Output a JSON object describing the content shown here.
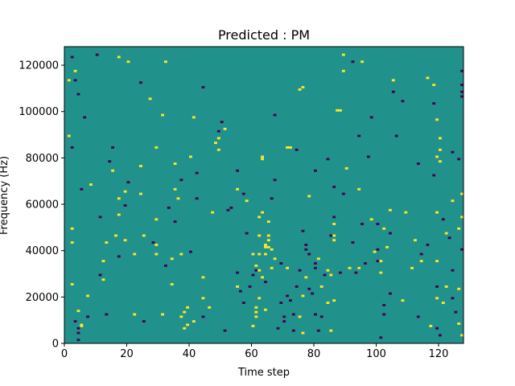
{
  "chart_data": {
    "type": "heatmap",
    "title": "Predicted : PM",
    "xlabel": "Time step",
    "ylabel": "Frequency (Hz)",
    "xlim": [
      0,
      128
    ],
    "ylim": [
      0,
      128000
    ],
    "x_ticks": [
      0,
      20,
      40,
      60,
      80,
      100,
      120
    ],
    "y_ticks": [
      0,
      20000,
      40000,
      60000,
      80000,
      100000,
      120000
    ],
    "y_tick_labels": [
      "0",
      "20000",
      "40000",
      "60000",
      "80000",
      "100000",
      "120000"
    ],
    "grid": false,
    "colormap": "viridis",
    "background_value": 0,
    "colors": {
      "low": "#440154",
      "background": "#21918c",
      "high": "#fde725"
    },
    "cells_high": [
      [
        5,
        7000
      ],
      [
        5,
        7500
      ],
      [
        4,
        13500
      ],
      [
        2,
        25000
      ],
      [
        2,
        43000
      ],
      [
        2,
        49000
      ],
      [
        1,
        89000
      ],
      [
        1,
        113000
      ],
      [
        3,
        117000
      ],
      [
        7,
        20000
      ],
      [
        8,
        68000
      ],
      [
        12,
        27000
      ],
      [
        12,
        35000
      ],
      [
        13,
        43000
      ],
      [
        16,
        46000
      ],
      [
        15,
        74000
      ],
      [
        17,
        62000
      ],
      [
        19,
        44000
      ],
      [
        17,
        55000
      ],
      [
        17,
        123000
      ],
      [
        19,
        65000
      ],
      [
        20,
        121000
      ],
      [
        22,
        38000
      ],
      [
        22,
        12000
      ],
      [
        24,
        64000
      ],
      [
        24,
        76000
      ],
      [
        27,
        105000
      ],
      [
        25,
        46000
      ],
      [
        29,
        38000
      ],
      [
        29,
        84000
      ],
      [
        29,
        42000
      ],
      [
        29,
        53000
      ],
      [
        31,
        12000
      ],
      [
        31,
        98000
      ],
      [
        32,
        121000
      ],
      [
        34,
        25000
      ],
      [
        35,
        66000
      ],
      [
        35,
        77000
      ],
      [
        34,
        36000
      ],
      [
        36,
        62000
      ],
      [
        37,
        38000
      ],
      [
        37,
        11000
      ],
      [
        38,
        6000
      ],
      [
        38,
        13000
      ],
      [
        39,
        15000
      ],
      [
        39,
        7500
      ],
      [
        40,
        80000
      ],
      [
        41,
        9000
      ],
      [
        41,
        97000
      ],
      [
        44,
        19000
      ],
      [
        44,
        28000
      ],
      [
        46,
        15000
      ],
      [
        47,
        56000
      ],
      [
        48,
        86000
      ],
      [
        49,
        83000
      ],
      [
        49,
        88000
      ],
      [
        51,
        92000
      ],
      [
        55,
        24000
      ],
      [
        55,
        66000
      ],
      [
        58,
        61000
      ],
      [
        60,
        7000
      ],
      [
        60,
        38000
      ],
      [
        61,
        11000
      ],
      [
        61,
        13000
      ],
      [
        61,
        15000
      ],
      [
        61,
        33000
      ],
      [
        62,
        19000
      ],
      [
        62,
        31000
      ],
      [
        62,
        38000
      ],
      [
        62,
        46000
      ],
      [
        62,
        54000
      ],
      [
        63,
        56000
      ],
      [
        63,
        28000
      ],
      [
        63,
        79000
      ],
      [
        63,
        80000
      ],
      [
        64,
        14000
      ],
      [
        64,
        38000
      ],
      [
        64,
        41000
      ],
      [
        64,
        42000
      ],
      [
        65,
        41000
      ],
      [
        65,
        44000
      ],
      [
        65,
        46000
      ],
      [
        65,
        52000
      ],
      [
        66,
        32000
      ],
      [
        67,
        36000
      ],
      [
        66,
        40000
      ],
      [
        71,
        84000
      ],
      [
        72,
        84000
      ],
      [
        71,
        32000
      ],
      [
        76,
        4000
      ],
      [
        75,
        11000
      ],
      [
        76,
        20000
      ],
      [
        77,
        28000
      ],
      [
        78,
        63000
      ],
      [
        75,
        109000
      ],
      [
        76,
        110000
      ],
      [
        81,
        36000
      ],
      [
        82,
        24000
      ],
      [
        85,
        5000
      ],
      [
        84,
        17000
      ],
      [
        84,
        31000
      ],
      [
        85,
        29000
      ],
      [
        86,
        51000
      ],
      [
        86,
        18000
      ],
      [
        86,
        44000
      ],
      [
        86,
        46000
      ],
      [
        87,
        100000
      ],
      [
        88,
        100000
      ],
      [
        89,
        124000
      ],
      [
        89,
        117000
      ],
      [
        90,
        75000
      ],
      [
        91,
        32000
      ],
      [
        94,
        32000
      ],
      [
        94,
        66000
      ],
      [
        95,
        121000
      ],
      [
        98,
        53000
      ],
      [
        99,
        39000
      ],
      [
        101,
        30000
      ],
      [
        101,
        35000
      ],
      [
        102,
        49000
      ],
      [
        103,
        41000
      ],
      [
        104,
        57000
      ],
      [
        105,
        113000
      ],
      [
        108,
        18000
      ],
      [
        109,
        56000
      ],
      [
        111,
        32000
      ],
      [
        112,
        44000
      ],
      [
        114,
        35000
      ],
      [
        116,
        114000
      ],
      [
        117,
        7000
      ],
      [
        118,
        111000
      ],
      [
        119,
        96000
      ],
      [
        119,
        56000
      ],
      [
        119,
        80000
      ],
      [
        119,
        19000
      ],
      [
        119,
        35000
      ],
      [
        120,
        83000
      ],
      [
        120,
        88000
      ],
      [
        120,
        78000
      ],
      [
        122,
        47000
      ],
      [
        121,
        17000
      ],
      [
        122,
        24000
      ],
      [
        124,
        61000
      ],
      [
        126,
        8000
      ],
      [
        126,
        23000
      ],
      [
        126,
        49000
      ],
      [
        127,
        64000
      ],
      [
        127,
        3000
      ],
      [
        127,
        54000
      ]
    ],
    "cells_low": [
      [
        4,
        1000
      ],
      [
        4,
        4000
      ],
      [
        4,
        6000
      ],
      [
        3,
        9000
      ],
      [
        5,
        66000
      ],
      [
        2,
        84000
      ],
      [
        3,
        113000
      ],
      [
        2,
        123000
      ],
      [
        4,
        107000
      ],
      [
        6,
        97000
      ],
      [
        7,
        11000
      ],
      [
        11,
        29000
      ],
      [
        11,
        54000
      ],
      [
        10,
        124000
      ],
      [
        13,
        12000
      ],
      [
        14,
        78000
      ],
      [
        15,
        84000
      ],
      [
        17,
        37000
      ],
      [
        19,
        59000
      ],
      [
        20,
        69000
      ],
      [
        25,
        9000
      ],
      [
        24,
        112000
      ],
      [
        28,
        43000
      ],
      [
        32,
        33000
      ],
      [
        33,
        58000
      ],
      [
        35,
        52000
      ],
      [
        37,
        70000
      ],
      [
        40,
        39000
      ],
      [
        42,
        62000
      ],
      [
        42,
        73000
      ],
      [
        44,
        11000
      ],
      [
        44,
        110000
      ],
      [
        49,
        91000
      ],
      [
        50,
        95000
      ],
      [
        51,
        5000
      ],
      [
        52,
        57000
      ],
      [
        53,
        58000
      ],
      [
        55,
        30000
      ],
      [
        55,
        74000
      ],
      [
        56,
        22000
      ],
      [
        57,
        17000
      ],
      [
        57,
        64000
      ],
      [
        58,
        47000
      ],
      [
        59,
        24000
      ],
      [
        60,
        29000
      ],
      [
        61,
        31000
      ],
      [
        64,
        26000
      ],
      [
        67,
        98000
      ],
      [
        66,
        62000
      ],
      [
        67,
        70000
      ],
      [
        68,
        6000
      ],
      [
        69,
        34000
      ],
      [
        69,
        17000
      ],
      [
        70,
        9000
      ],
      [
        70,
        11000
      ],
      [
        71,
        20000
      ],
      [
        72,
        18000
      ],
      [
        73,
        12000
      ],
      [
        73,
        5000
      ],
      [
        74,
        83000
      ],
      [
        74,
        24000
      ],
      [
        75,
        31000
      ],
      [
        76,
        48000
      ],
      [
        77,
        42000
      ],
      [
        77,
        40000
      ],
      [
        78,
        23000
      ],
      [
        78,
        38000
      ],
      [
        79,
        21000
      ],
      [
        80,
        74000
      ],
      [
        80,
        34000
      ],
      [
        80,
        12000
      ],
      [
        80,
        32000
      ],
      [
        81,
        5000
      ],
      [
        82,
        11000
      ],
      [
        83,
        29000
      ],
      [
        84,
        79000
      ],
      [
        85,
        46000
      ],
      [
        86,
        54000
      ],
      [
        86,
        67000
      ],
      [
        88,
        30000
      ],
      [
        89,
        64000
      ],
      [
        92,
        121000
      ],
      [
        92,
        43000
      ],
      [
        93,
        30000
      ],
      [
        94,
        32000
      ],
      [
        94,
        89000
      ],
      [
        95,
        51000
      ],
      [
        96,
        34000
      ],
      [
        97,
        80000
      ],
      [
        98,
        97000
      ],
      [
        100,
        40000
      ],
      [
        100,
        51000
      ],
      [
        100,
        35000
      ],
      [
        101,
        2000
      ],
      [
        102,
        16000
      ],
      [
        102,
        12000
      ],
      [
        104,
        21000
      ],
      [
        104,
        47000
      ],
      [
        105,
        108000
      ],
      [
        106,
        89000
      ],
      [
        108,
        104000
      ],
      [
        113,
        11000
      ],
      [
        113,
        77000
      ],
      [
        114,
        38000
      ],
      [
        116,
        42000
      ],
      [
        118,
        72000
      ],
      [
        118,
        103000
      ],
      [
        119,
        24000
      ],
      [
        119,
        6000
      ],
      [
        120,
        3000
      ],
      [
        121,
        53000
      ],
      [
        123,
        45000
      ],
      [
        124,
        19000
      ],
      [
        124,
        31000
      ],
      [
        124,
        82000
      ],
      [
        125,
        13000
      ],
      [
        127,
        40000
      ],
      [
        127,
        117000
      ],
      [
        127,
        106000
      ],
      [
        127,
        108000
      ],
      [
        127,
        111000
      ],
      [
        126,
        79000
      ]
    ]
  }
}
